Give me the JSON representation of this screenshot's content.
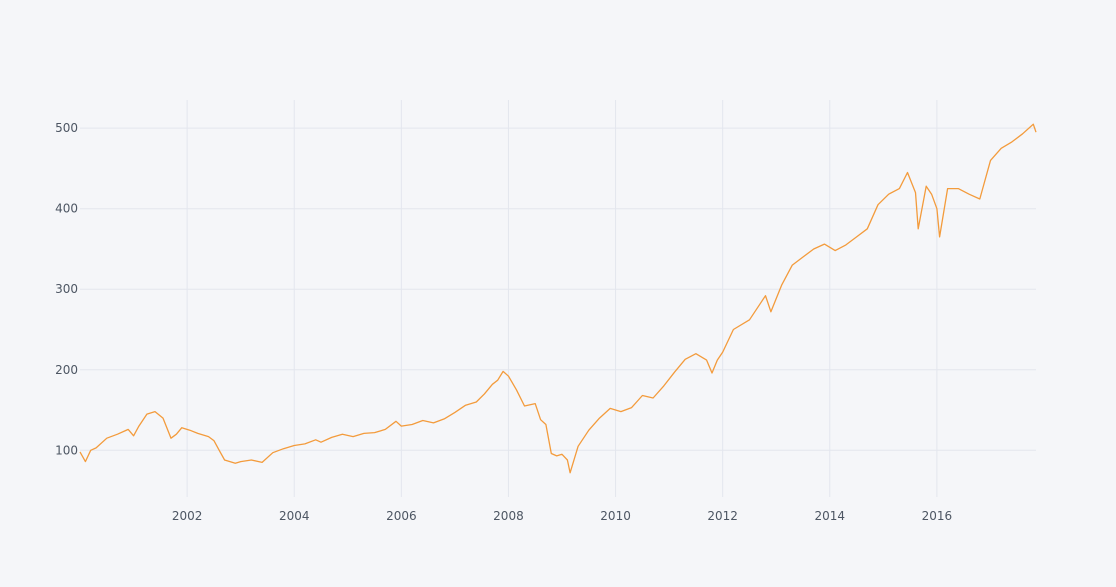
{
  "chart_data": {
    "type": "line",
    "title": "",
    "xlabel": "",
    "ylabel": "",
    "xlim": [
      2000.0,
      2017.85
    ],
    "ylim": [
      42,
      535
    ],
    "grid": true,
    "legend": "none",
    "x_ticks": [
      2002,
      2004,
      2006,
      2008,
      2010,
      2012,
      2014,
      2016
    ],
    "y_ticks": [
      100,
      200,
      300,
      400,
      500
    ],
    "colors": {
      "line": "#f39b3c",
      "grid": "#e3e6ee",
      "background": "#f5f6f9",
      "tick_text": "#4d5663"
    },
    "series": [
      {
        "x": [
          2000.0,
          2000.1,
          2000.2,
          2000.3,
          2000.5,
          2000.7,
          2000.9,
          2001.0,
          2001.1,
          2001.25,
          2001.4,
          2001.55,
          2001.7,
          2001.8,
          2001.9,
          2002.05,
          2002.2,
          2002.4,
          2002.5,
          2002.6,
          2002.7,
          2002.9,
          2003.0,
          2003.2,
          2003.4,
          2003.6,
          2003.8,
          2004.0,
          2004.2,
          2004.4,
          2004.5,
          2004.7,
          2004.9,
          2005.1,
          2005.3,
          2005.5,
          2005.7,
          2005.9,
          2006.0,
          2006.2,
          2006.4,
          2006.6,
          2006.8,
          2007.0,
          2007.2,
          2007.4,
          2007.55,
          2007.7,
          2007.8,
          2007.9,
          2008.0,
          2008.15,
          2008.3,
          2008.5,
          2008.6,
          2008.7,
          2008.8,
          2008.9,
          2009.0,
          2009.1,
          2009.15,
          2009.3,
          2009.5,
          2009.7,
          2009.9,
          2010.1,
          2010.3,
          2010.5,
          2010.7,
          2010.9,
          2011.1,
          2011.3,
          2011.5,
          2011.7,
          2011.8,
          2011.9,
          2012.0,
          2012.2,
          2012.5,
          2012.7,
          2012.8,
          2012.9,
          2013.1,
          2013.3,
          2013.5,
          2013.7,
          2013.9,
          2014.1,
          2014.3,
          2014.5,
          2014.7,
          2014.9,
          2015.1,
          2015.3,
          2015.45,
          2015.6,
          2015.65,
          2015.8,
          2015.9,
          2016.0,
          2016.05,
          2016.2,
          2016.4,
          2016.6,
          2016.8,
          2017.0,
          2017.2,
          2017.4,
          2017.6,
          2017.8,
          2017.85
        ],
        "y": [
          98,
          86,
          100,
          103,
          115,
          120,
          126,
          118,
          130,
          145,
          148,
          140,
          115,
          120,
          128,
          125,
          121,
          117,
          112,
          100,
          88,
          84,
          86,
          88,
          85,
          97,
          102,
          106,
          108,
          113,
          110,
          116,
          120,
          117,
          121,
          122,
          126,
          136,
          130,
          132,
          137,
          134,
          139,
          147,
          156,
          160,
          170,
          182,
          187,
          198,
          192,
          175,
          155,
          158,
          138,
          132,
          96,
          93,
          95,
          88,
          72,
          105,
          125,
          140,
          152,
          148,
          153,
          168,
          165,
          180,
          197,
          213,
          220,
          212,
          196,
          212,
          222,
          250,
          262,
          282,
          292,
          272,
          305,
          330,
          340,
          350,
          356,
          348,
          355,
          365,
          375,
          405,
          418,
          425,
          445,
          420,
          375,
          428,
          418,
          400,
          365,
          425,
          425,
          418,
          412,
          460,
          475,
          483,
          493,
          505,
          495
        ]
      }
    ]
  }
}
